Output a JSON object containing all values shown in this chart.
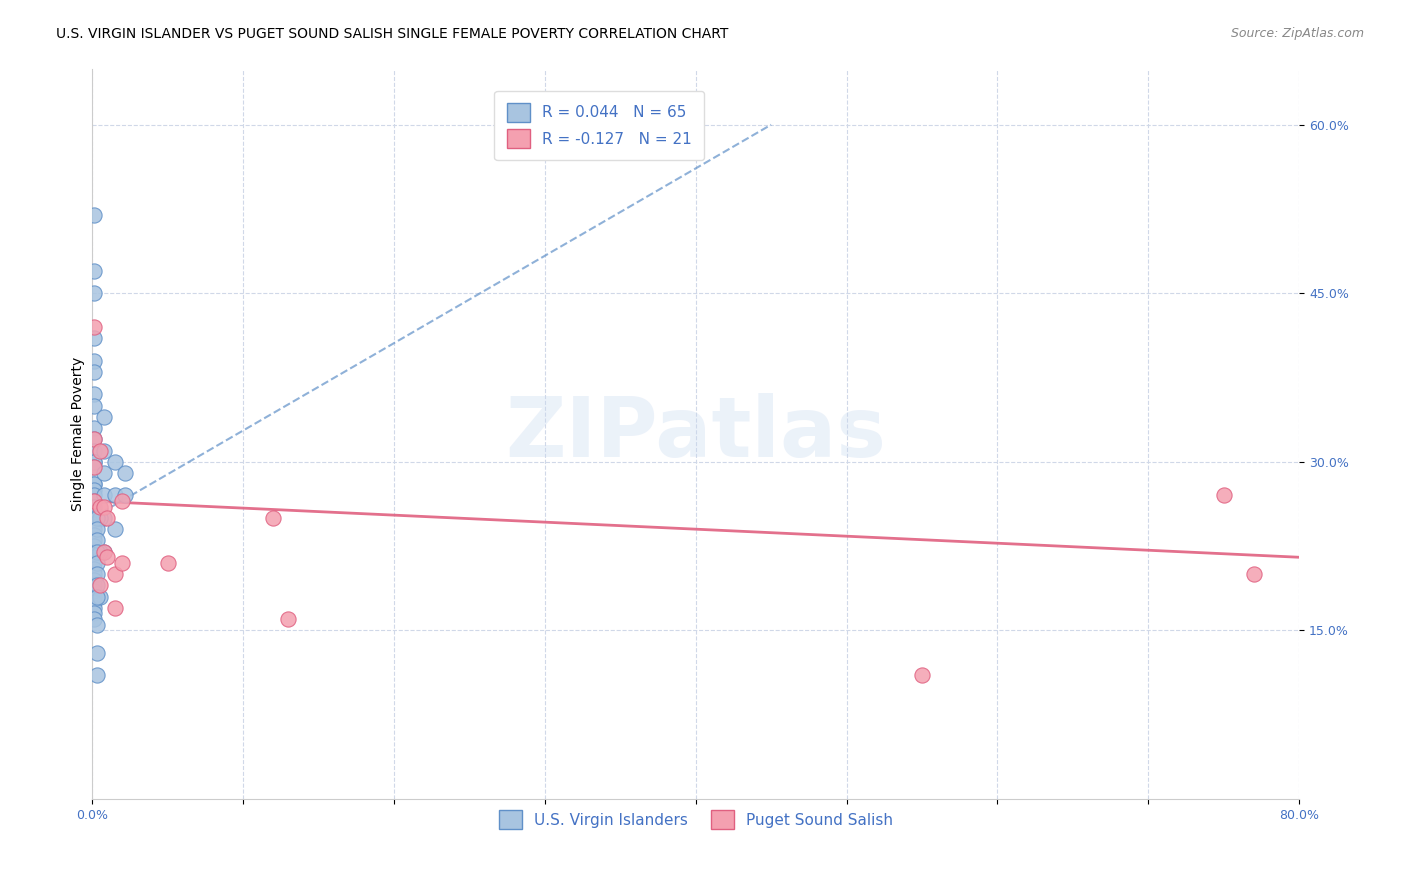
{
  "title": "U.S. VIRGIN ISLANDER VS PUGET SOUND SALISH SINGLE FEMALE POVERTY CORRELATION CHART",
  "source": "Source: ZipAtlas.com",
  "ylabel": "Single Female Poverty",
  "xlim": [
    0.0,
    0.8
  ],
  "ylim": [
    0.0,
    0.65
  ],
  "ytick_positions": [
    0.15,
    0.3,
    0.45,
    0.6
  ],
  "ytick_labels": [
    "15.0%",
    "30.0%",
    "45.0%",
    "60.0%"
  ],
  "legend1_label": "R = 0.044   N = 65",
  "legend2_label": "R = -0.127   N = 21",
  "series1_label": "U.S. Virgin Islanders",
  "series2_label": "Puget Sound Salish",
  "color_blue": "#a8c4e0",
  "color_pink": "#f4a0b0",
  "color_blue_line": "#6090c8",
  "color_pink_line": "#e06080",
  "color_legend_text": "#4472c4",
  "color_grid": "#d0d8e8",
  "background": "#ffffff",
  "blue_x": [
    0.001,
    0.001,
    0.001,
    0.001,
    0.001,
    0.001,
    0.001,
    0.001,
    0.001,
    0.001,
    0.001,
    0.001,
    0.001,
    0.001,
    0.001,
    0.001,
    0.001,
    0.001,
    0.001,
    0.001,
    0.001,
    0.001,
    0.001,
    0.001,
    0.001,
    0.001,
    0.001,
    0.001,
    0.001,
    0.001,
    0.001,
    0.001,
    0.001,
    0.001,
    0.001,
    0.001,
    0.001,
    0.001,
    0.001,
    0.001,
    0.008,
    0.008,
    0.008,
    0.008,
    0.008,
    0.008,
    0.015,
    0.015,
    0.015,
    0.022,
    0.022,
    0.005,
    0.005,
    0.005,
    0.003,
    0.003,
    0.003,
    0.003,
    0.003,
    0.003,
    0.003,
    0.003,
    0.003,
    0.003,
    0.003
  ],
  "blue_y": [
    0.52,
    0.47,
    0.45,
    0.41,
    0.39,
    0.38,
    0.36,
    0.35,
    0.33,
    0.32,
    0.31,
    0.3,
    0.3,
    0.295,
    0.28,
    0.28,
    0.275,
    0.27,
    0.265,
    0.26,
    0.255,
    0.25,
    0.245,
    0.24,
    0.235,
    0.23,
    0.225,
    0.22,
    0.215,
    0.21,
    0.205,
    0.2,
    0.195,
    0.19,
    0.185,
    0.18,
    0.175,
    0.17,
    0.165,
    0.16,
    0.34,
    0.31,
    0.29,
    0.27,
    0.25,
    0.22,
    0.3,
    0.27,
    0.24,
    0.29,
    0.27,
    0.25,
    0.22,
    0.18,
    0.13,
    0.11,
    0.25,
    0.24,
    0.23,
    0.22,
    0.21,
    0.2,
    0.19,
    0.18,
    0.155
  ],
  "pink_x": [
    0.001,
    0.001,
    0.001,
    0.001,
    0.005,
    0.005,
    0.005,
    0.008,
    0.008,
    0.01,
    0.01,
    0.015,
    0.015,
    0.02,
    0.02,
    0.05,
    0.12,
    0.13,
    0.55,
    0.75,
    0.77
  ],
  "pink_y": [
    0.42,
    0.32,
    0.295,
    0.265,
    0.31,
    0.26,
    0.19,
    0.26,
    0.22,
    0.25,
    0.215,
    0.2,
    0.17,
    0.265,
    0.21,
    0.21,
    0.25,
    0.16,
    0.11,
    0.27,
    0.2
  ],
  "title_fontsize": 10,
  "axis_label_fontsize": 10,
  "tick_fontsize": 9,
  "legend_fontsize": 11,
  "source_fontsize": 9,
  "watermark_text": "ZIPatlas",
  "watermark_color": "#c8daf0",
  "watermark_fontsize": 60,
  "watermark_alpha": 0.35,
  "blue_trend_x": [
    0.0,
    0.45
  ],
  "blue_trend_y": [
    0.25,
    0.6
  ],
  "pink_trend_x": [
    0.0,
    0.8
  ],
  "pink_trend_y": [
    0.265,
    0.215
  ]
}
